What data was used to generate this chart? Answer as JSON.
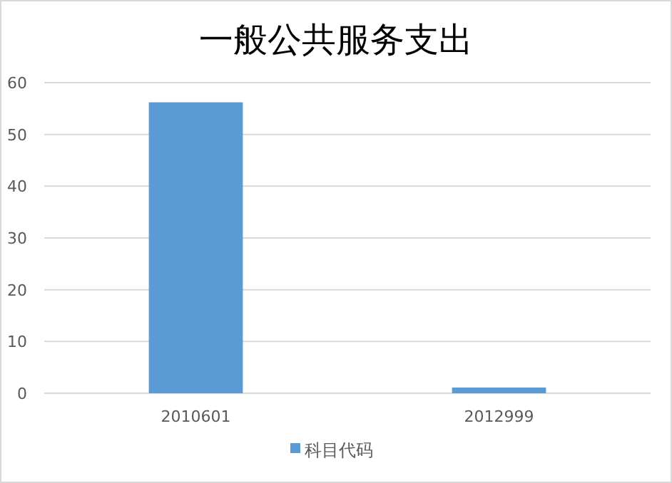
{
  "chart_data": {
    "type": "bar",
    "title": "一般公共服务支出",
    "categories": [
      "2010601",
      "2012999"
    ],
    "series": [
      {
        "name": "科目代码",
        "color": "#5b9bd5",
        "values": [
          56.2,
          1.1
        ]
      }
    ],
    "ylim": [
      0,
      60
    ],
    "yticks": [
      0,
      10,
      20,
      30,
      40,
      50,
      60
    ],
    "grid": "y",
    "legend": "bottom"
  }
}
